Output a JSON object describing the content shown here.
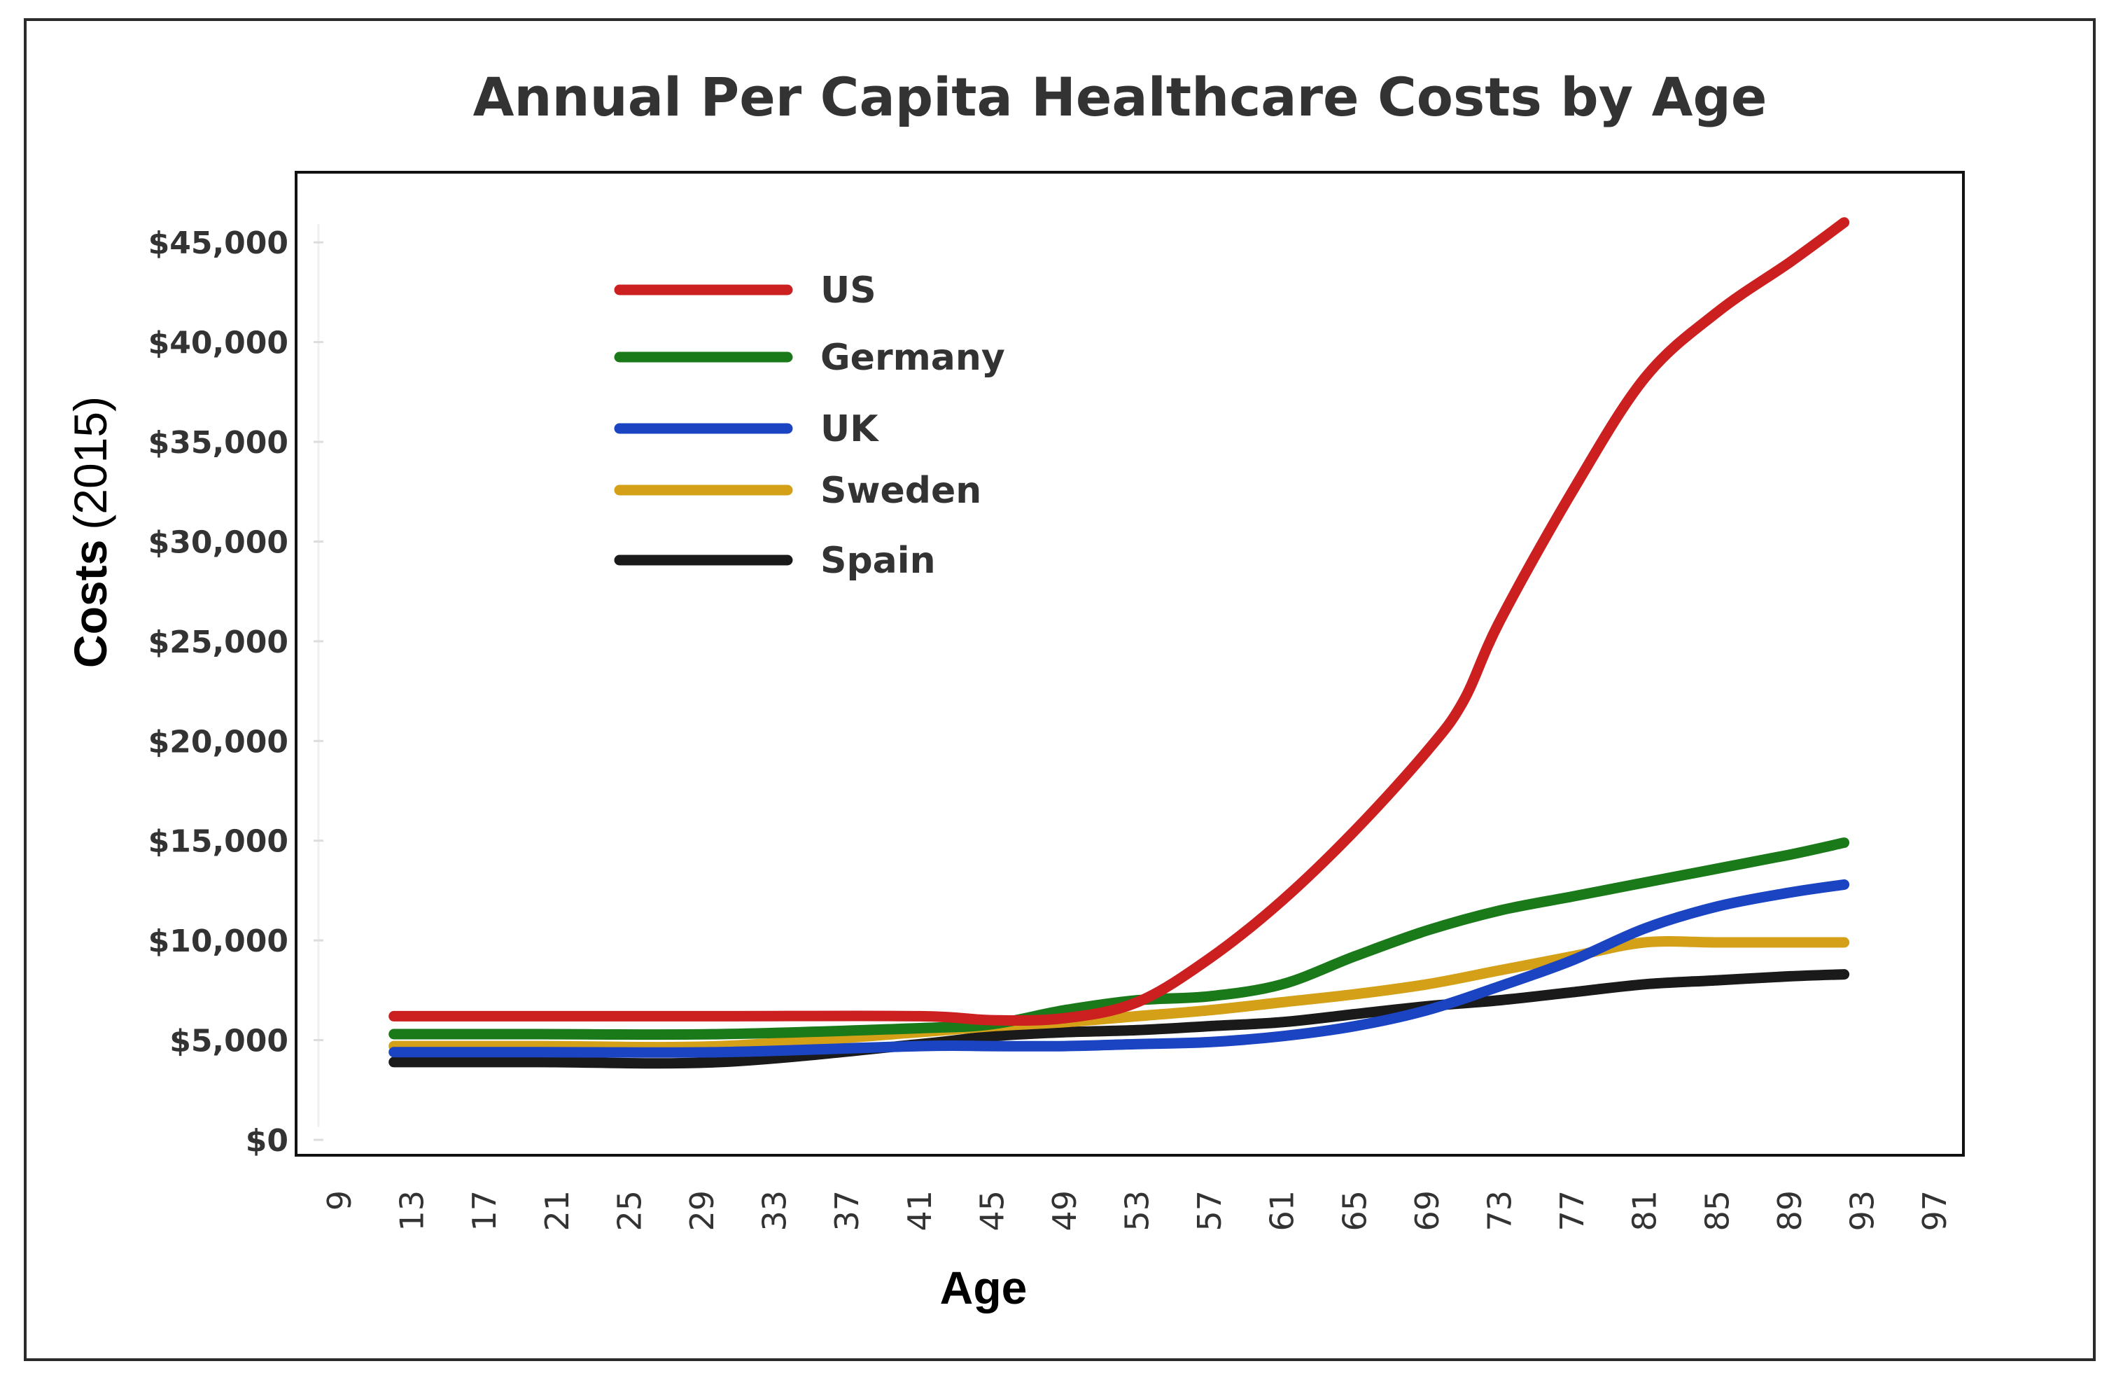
{
  "chart_data": {
    "type": "line",
    "title": "Annual Per Capita Healthcare Costs by Age",
    "xlabel": "Age",
    "ylabel_bold": "Costs",
    "ylabel_normal": "(2015)",
    "x_ticks": [
      "9",
      "13",
      "17",
      "21",
      "25",
      "29",
      "33",
      "37",
      "41",
      "45",
      "49",
      "53",
      "57",
      "61",
      "65",
      "69",
      "73",
      "77",
      "81",
      "85",
      "89",
      "93",
      "97"
    ],
    "y_ticks": [
      "$0",
      "$5,000",
      "$10,000",
      "$15,000",
      "$20,000",
      "$25,000",
      "$30,000",
      "$35,000",
      "$40,000",
      "$45,000"
    ],
    "xlim": [
      9,
      98
    ],
    "ylim": [
      0,
      46200
    ],
    "y_tick_values": [
      0,
      5000,
      10000,
      15000,
      20000,
      25000,
      30000,
      35000,
      40000,
      45000
    ],
    "legend_position": "top-left",
    "series": [
      {
        "name": "US",
        "color": "#cc1f1f",
        "x": [
          12,
          20,
          30,
          41,
          45,
          49,
          53,
          57,
          61,
          65,
          69,
          71,
          73,
          77,
          81,
          85,
          89,
          92
        ],
        "values": [
          6200,
          6200,
          6200,
          6200,
          6000,
          6100,
          6900,
          9100,
          12000,
          15500,
          19500,
          22000,
          26000,
          32500,
          38200,
          41500,
          44000,
          46000
        ]
      },
      {
        "name": "Germany",
        "color": "#1a7a1a",
        "x": [
          12,
          20,
          30,
          41,
          45,
          49,
          53,
          57,
          61,
          65,
          69,
          73,
          77,
          81,
          85,
          89,
          92
        ],
        "values": [
          5300,
          5300,
          5300,
          5600,
          5800,
          6500,
          7000,
          7200,
          7800,
          9200,
          10500,
          11500,
          12200,
          12900,
          13600,
          14300,
          14900
        ]
      },
      {
        "name": "UK",
        "color": "#1a44c2",
        "x": [
          12,
          20,
          30,
          41,
          45,
          49,
          53,
          57,
          61,
          65,
          69,
          73,
          77,
          81,
          85,
          89,
          92
        ],
        "values": [
          4400,
          4400,
          4400,
          4700,
          4700,
          4700,
          4800,
          4900,
          5200,
          5700,
          6500,
          7700,
          9000,
          10600,
          11700,
          12400,
          12800
        ]
      },
      {
        "name": "Sweden",
        "color": "#d4a017",
        "x": [
          12,
          20,
          30,
          41,
          45,
          49,
          53,
          57,
          61,
          65,
          69,
          73,
          77,
          81,
          85,
          89,
          92
        ],
        "values": [
          4700,
          4700,
          4700,
          5400,
          5700,
          5900,
          6200,
          6500,
          6900,
          7300,
          7800,
          8500,
          9200,
          9900,
          9900,
          9900,
          9900
        ]
      },
      {
        "name": "Spain",
        "color": "#1a1a1a",
        "x": [
          12,
          20,
          30,
          41,
          45,
          49,
          53,
          57,
          61,
          65,
          69,
          73,
          77,
          81,
          85,
          89,
          92
        ],
        "values": [
          3900,
          3900,
          3900,
          4800,
          5200,
          5400,
          5500,
          5700,
          5900,
          6300,
          6700,
          7000,
          7400,
          7800,
          8000,
          8200,
          8300
        ]
      }
    ]
  }
}
